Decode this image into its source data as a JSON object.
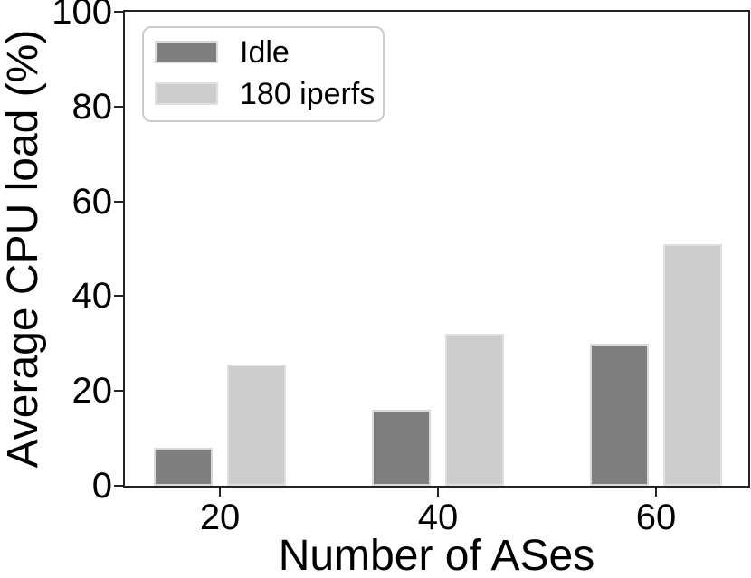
{
  "figure": {
    "background": "#ffffff",
    "spine_color": "#242424",
    "text_color": "#000000",
    "legend_border_color": "#cccccc"
  },
  "chart_data": {
    "type": "bar",
    "title": "",
    "xlabel": "Number of ASes",
    "ylabel": "Average CPU load (%)",
    "categories": [
      "20",
      "40",
      "60"
    ],
    "series": [
      {
        "name": "Idle",
        "values": [
          8,
          16,
          30
        ],
        "color": "#7f7f7f",
        "edge_color": "#d9d9d9"
      },
      {
        "name": "180 iperfs",
        "values": [
          25.5,
          32,
          51
        ],
        "color": "#cdcdcd",
        "edge_color": "#e0e0e0"
      }
    ],
    "ylim": [
      0,
      100
    ],
    "yticks": [
      0,
      20,
      40,
      60,
      80,
      100
    ],
    "grid": false,
    "legend": {
      "position": "upper-left",
      "entries": [
        "Idle",
        "180 iperfs"
      ]
    }
  }
}
